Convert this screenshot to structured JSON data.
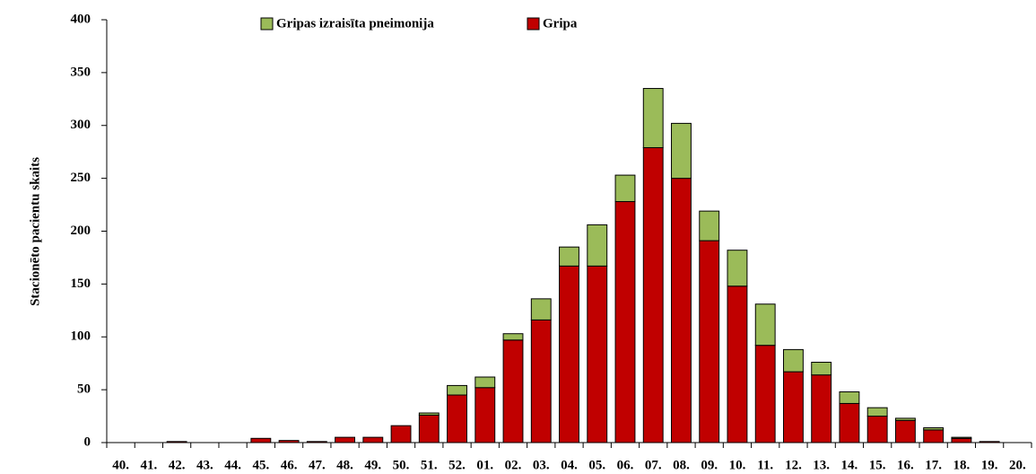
{
  "chart_data": {
    "type": "stacked_bar",
    "y_label": "Stacionēto pacientu skaits",
    "categories": [
      "40.",
      "41.",
      "42.",
      "43.",
      "44.",
      "45.",
      "46.",
      "47.",
      "48.",
      "49.",
      "50.",
      "51.",
      "52.",
      "01.",
      "02.",
      "03.",
      "04.",
      "05.",
      "06.",
      "07.",
      "08.",
      "09.",
      "10.",
      "11.",
      "12.",
      "13.",
      "14.",
      "15.",
      "16.",
      "17.",
      "18.",
      "19.",
      "20."
    ],
    "series": [
      {
        "name": "Gripas izraisīta pneimonija",
        "color": "#9bbb59",
        "values": [
          0,
          0,
          0,
          0,
          0,
          0,
          0,
          0,
          0,
          0,
          0,
          2,
          9,
          10,
          6,
          20,
          18,
          39,
          25,
          56,
          52,
          28,
          34,
          39,
          21,
          12,
          11,
          8,
          2,
          2,
          1,
          0,
          0
        ]
      },
      {
        "name": "Gripa",
        "color": "#c00000",
        "values": [
          0,
          0,
          1,
          0,
          0,
          4,
          2,
          1,
          5,
          5,
          16,
          26,
          45,
          52,
          97,
          116,
          167,
          167,
          228,
          279,
          250,
          191,
          148,
          92,
          67,
          64,
          37,
          25,
          21,
          12,
          4,
          1,
          0
        ]
      }
    ],
    "ylim": [
      0,
      400
    ],
    "yticks": [
      0,
      50,
      100,
      150,
      200,
      250,
      300,
      350,
      400
    ],
    "grid": false
  }
}
